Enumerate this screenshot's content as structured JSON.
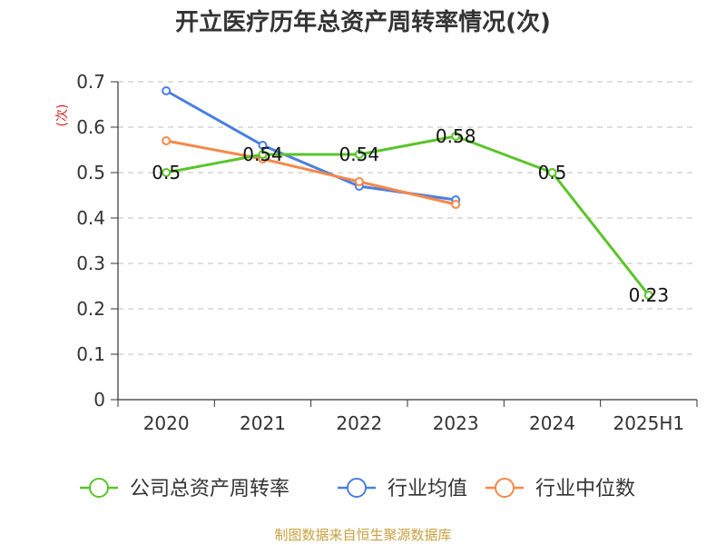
{
  "chart_data": {
    "type": "line",
    "title": "开立医疗历年总资产周转率情况(次)",
    "unit_label": "(次)",
    "categories": [
      "2020",
      "2021",
      "2022",
      "2023",
      "2024",
      "2025H1"
    ],
    "ylim": [
      0,
      0.7
    ],
    "yticks": [
      "0",
      "0.1",
      "0.2",
      "0.3",
      "0.4",
      "0.5",
      "0.6",
      "0.7"
    ],
    "grid": true,
    "legend_position": "bottom",
    "series": [
      {
        "name": "公司总资产周转率",
        "color": "#5ac42a",
        "values": [
          0.5,
          0.54,
          0.54,
          0.58,
          0.5,
          0.23
        ],
        "labels": [
          "0.5",
          "0.54",
          "0.54",
          "0.58",
          "0.5",
          "0.23"
        ]
      },
      {
        "name": "行业均值",
        "color": "#4a7fe0",
        "values": [
          0.68,
          0.56,
          0.47,
          0.44,
          null,
          null
        ]
      },
      {
        "name": "行业中位数",
        "color": "#f5884a",
        "values": [
          0.57,
          0.53,
          0.48,
          0.43,
          null,
          null
        ]
      }
    ],
    "source": "制图数据来自恒生聚源数据库"
  }
}
